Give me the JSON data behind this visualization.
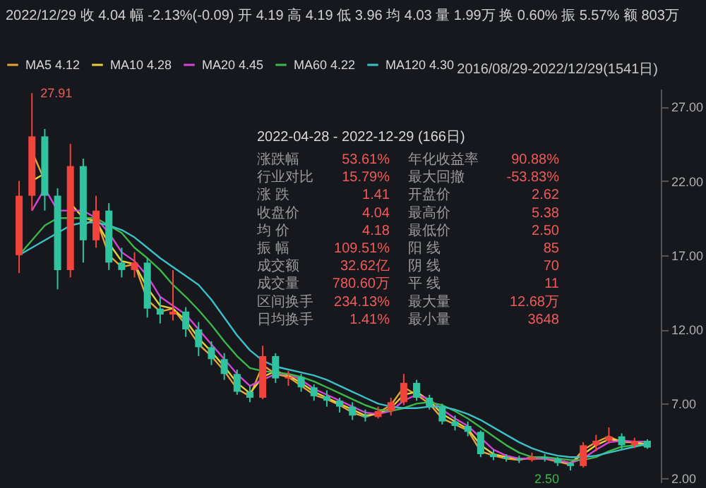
{
  "chart_data": {
    "type": "candlestick",
    "title": "2022/12/29 收 4.04 幅 -2.13%(-0.09) 开 4.19 高 4.19 低 3.96 均 4.03 量 1.99万 换 0.60% 振 5.57% 额 803万",
    "categories": [
      null,
      null,
      null,
      null,
      null,
      null,
      null,
      null,
      null,
      null,
      null,
      null,
      null,
      null,
      null,
      null,
      null,
      null,
      null,
      null,
      null,
      null,
      null,
      null,
      null,
      null,
      null,
      null,
      null,
      null,
      null,
      null,
      null,
      null,
      null,
      null,
      null,
      null,
      null,
      null,
      null,
      null,
      null,
      null,
      null,
      null,
      null,
      null,
      null,
      null
    ],
    "ohlc": [
      [
        17,
        22,
        15.8,
        21
      ],
      [
        21,
        27.91,
        20,
        25
      ],
      [
        25,
        25.5,
        20,
        21
      ],
      [
        21,
        21.5,
        14.7,
        16
      ],
      [
        16,
        24.5,
        15.5,
        23
      ],
      [
        23,
        23.5,
        16.5,
        18
      ],
      [
        18,
        21,
        17.5,
        20
      ],
      [
        20,
        20.5,
        16,
        16.5
      ],
      [
        16.5,
        17.5,
        15.5,
        16
      ],
      [
        16,
        17.2,
        15.5,
        16.5
      ],
      [
        16.5,
        16.8,
        12.8,
        13.4
      ],
      [
        13.4,
        14.2,
        12.4,
        13
      ],
      [
        13,
        16,
        12.6,
        13.2
      ],
      [
        13.2,
        13.5,
        11.5,
        12
      ],
      [
        12,
        12.5,
        10.2,
        10.8
      ],
      [
        10.8,
        11.2,
        9.6,
        10
      ],
      [
        10,
        10.4,
        8.6,
        9
      ],
      [
        9,
        9.3,
        7.6,
        7.8
      ],
      [
        7.8,
        8.2,
        7.1,
        7.4
      ],
      [
        7.4,
        10.9,
        7.3,
        10.2
      ],
      [
        10.2,
        10.4,
        8.4,
        8.7
      ],
      [
        8.7,
        9.2,
        8.2,
        8.8
      ],
      [
        8.8,
        9,
        7.8,
        8.1
      ],
      [
        8.1,
        8.3,
        7.2,
        7.5
      ],
      [
        7.5,
        7.9,
        6.8,
        7.2
      ],
      [
        7.2,
        7.4,
        6.4,
        6.8
      ],
      [
        6.8,
        7.1,
        5.9,
        6.2
      ],
      [
        6.2,
        6.6,
        5.8,
        6.1
      ],
      [
        6.1,
        6.8,
        6,
        6.5
      ],
      [
        6.5,
        7.4,
        6.2,
        7.1
      ],
      [
        7.1,
        9,
        6.9,
        8.4
      ],
      [
        8.4,
        8.6,
        7.2,
        7.4
      ],
      [
        7.4,
        7.6,
        6.6,
        6.8
      ],
      [
        6.8,
        7,
        5.6,
        5.8
      ],
      [
        5.8,
        6.2,
        5.2,
        5.5
      ],
      [
        5.5,
        5.8,
        4.8,
        5.1
      ],
      [
        5.1,
        5.2,
        3.4,
        3.6
      ],
      [
        3.6,
        3.9,
        3.2,
        3.4
      ],
      [
        3.4,
        3.6,
        3.1,
        3.3
      ],
      [
        3.3,
        3.5,
        3,
        3.2
      ],
      [
        3.2,
        3.7,
        3.1,
        3.4
      ],
      [
        3.4,
        3.6,
        3.1,
        3.3
      ],
      [
        3.3,
        3.4,
        2.8,
        3
      ],
      [
        3,
        3.1,
        2.5,
        2.8
      ],
      [
        2.8,
        4.4,
        2.7,
        4.2
      ],
      [
        4.2,
        4.9,
        3.8,
        4.5
      ],
      [
        4.5,
        5.4,
        4.3,
        4.8
      ],
      [
        4.8,
        5,
        3.9,
        4.2
      ],
      [
        4.2,
        4.7,
        4,
        4.5
      ],
      [
        4.5,
        4.6,
        3.96,
        4.04
      ]
    ],
    "series": [
      {
        "name": "MA5 4.12",
        "type": "line",
        "color": "#e8a33a",
        "values": [
          null,
          24,
          22,
          null,
          null,
          19,
          19.5,
          17,
          16.2,
          16.4,
          14,
          13.2,
          13.4,
          12.3,
          11,
          10.2,
          9.2,
          8,
          7.5,
          9.6,
          9,
          8.8,
          8.2,
          7.6,
          7.3,
          6.9,
          6.4,
          6.1,
          6.4,
          6.9,
          8.1,
          7.6,
          7,
          6,
          5.6,
          5.2,
          3.8,
          3.5,
          3.3,
          3.2,
          3.4,
          3.3,
          3.1,
          2.9,
          3.9,
          4.4,
          4.8,
          4.4,
          4.4,
          4.12
        ]
      },
      {
        "name": "MA10 4.28",
        "type": "line",
        "color": "#e6d23c",
        "values": [
          null,
          22,
          22.5,
          null,
          20.5,
          19.5,
          19.3,
          17.8,
          16.6,
          16.4,
          14.8,
          13.6,
          13.4,
          12.6,
          11.4,
          10.5,
          9.5,
          8.4,
          7.7,
          8.8,
          9.2,
          8.9,
          8.4,
          7.8,
          7.4,
          7,
          6.6,
          6.2,
          6.3,
          6.7,
          7.6,
          7.8,
          7.2,
          6.3,
          5.8,
          5.3,
          4.2,
          3.6,
          3.4,
          3.3,
          3.3,
          3.3,
          3.2,
          3,
          3.6,
          4.2,
          4.6,
          4.5,
          4.4,
          4.28
        ]
      },
      {
        "name": "MA20 4.45",
        "type": "line",
        "color": "#d844d8",
        "values": [
          null,
          20,
          21.5,
          20,
          20,
          20,
          19.5,
          18.5,
          17.2,
          16.6,
          15.6,
          14.2,
          13.6,
          13,
          12,
          11,
          10,
          9,
          8.2,
          8.6,
          9,
          9,
          8.6,
          8,
          7.6,
          7.2,
          6.8,
          6.4,
          6.3,
          6.5,
          7.2,
          7.6,
          7.3,
          6.6,
          6,
          5.5,
          4.7,
          3.9,
          3.5,
          3.3,
          3.3,
          3.3,
          3.2,
          3,
          3.3,
          3.9,
          4.4,
          4.5,
          4.45,
          4.45
        ]
      },
      {
        "name": "MA60 4.22",
        "type": "line",
        "color": "#3cb84a",
        "values": [
          17,
          18,
          19,
          19.5,
          19.5,
          19.5,
          19.5,
          19,
          18.5,
          17.5,
          16.8,
          16,
          15,
          14.2,
          13.3,
          12.3,
          11.2,
          10.2,
          9.4,
          9.2,
          9.1,
          9,
          8.8,
          8.5,
          8.1,
          7.7,
          7.3,
          6.9,
          6.6,
          6.5,
          6.7,
          7,
          7.1,
          6.9,
          6.5,
          6,
          5.4,
          4.8,
          4.2,
          3.7,
          3.4,
          3.4,
          3.3,
          3.2,
          3.2,
          3.4,
          3.8,
          4.1,
          4.2,
          4.22
        ]
      },
      {
        "name": "MA120 4.30",
        "type": "line",
        "color": "#3cc0c8",
        "values": [
          17,
          17.5,
          18,
          18.5,
          19,
          19.2,
          19.2,
          19,
          18.7,
          18.2,
          17.5,
          16.8,
          16.2,
          15.6,
          15,
          14,
          12.8,
          11.6,
          10.6,
          9.9,
          9.5,
          9.3,
          9.1,
          8.9,
          8.6,
          8.2,
          7.8,
          7.4,
          7,
          6.8,
          6.7,
          6.7,
          6.8,
          6.8,
          6.6,
          6.3,
          5.9,
          5.4,
          4.9,
          4.4,
          4,
          3.7,
          3.5,
          3.4,
          3.4,
          3.5,
          3.7,
          3.9,
          4.1,
          4.3
        ]
      }
    ],
    "ylim": [
      1.7,
      28.2
    ],
    "yticks": [
      {
        "value": 2,
        "label": "2.00"
      },
      {
        "value": 7,
        "label": "7.00"
      },
      {
        "value": 12,
        "label": "12.00"
      },
      {
        "value": 17,
        "label": "17.00"
      },
      {
        "value": 22,
        "label": "22.00"
      },
      {
        "value": 27,
        "label": "27.00"
      }
    ],
    "tick_labels": "y",
    "legend": "top left",
    "grid": false,
    "annotations": [
      "2016/08/29-2022/12/29(1541日)",
      "2022-04-28 - 2022-12-29 (166日)",
      "涨跌幅",
      "53.61%",
      "年化收益率",
      "90.88%",
      "行业对比",
      "15.79%",
      "最大回撤",
      "-53.83%",
      "涨 跌",
      "1.41",
      "开盘价",
      "2.62",
      "收盘价",
      "4.04",
      "最高价",
      "5.38",
      "均 价",
      "4.18",
      "最低价",
      "2.50",
      "振 幅",
      "109.51%",
      "阳 线",
      "85",
      "成交额",
      "32.62亿",
      "阴 线",
      "70",
      "成交量",
      "780.60万",
      "平 线",
      "11",
      "区间换手",
      "234.13%",
      "最大量",
      "12.68万",
      "日均换手",
      "1.41%",
      "最小量",
      "3648",
      "27.91",
      "2.50"
    ]
  }
}
